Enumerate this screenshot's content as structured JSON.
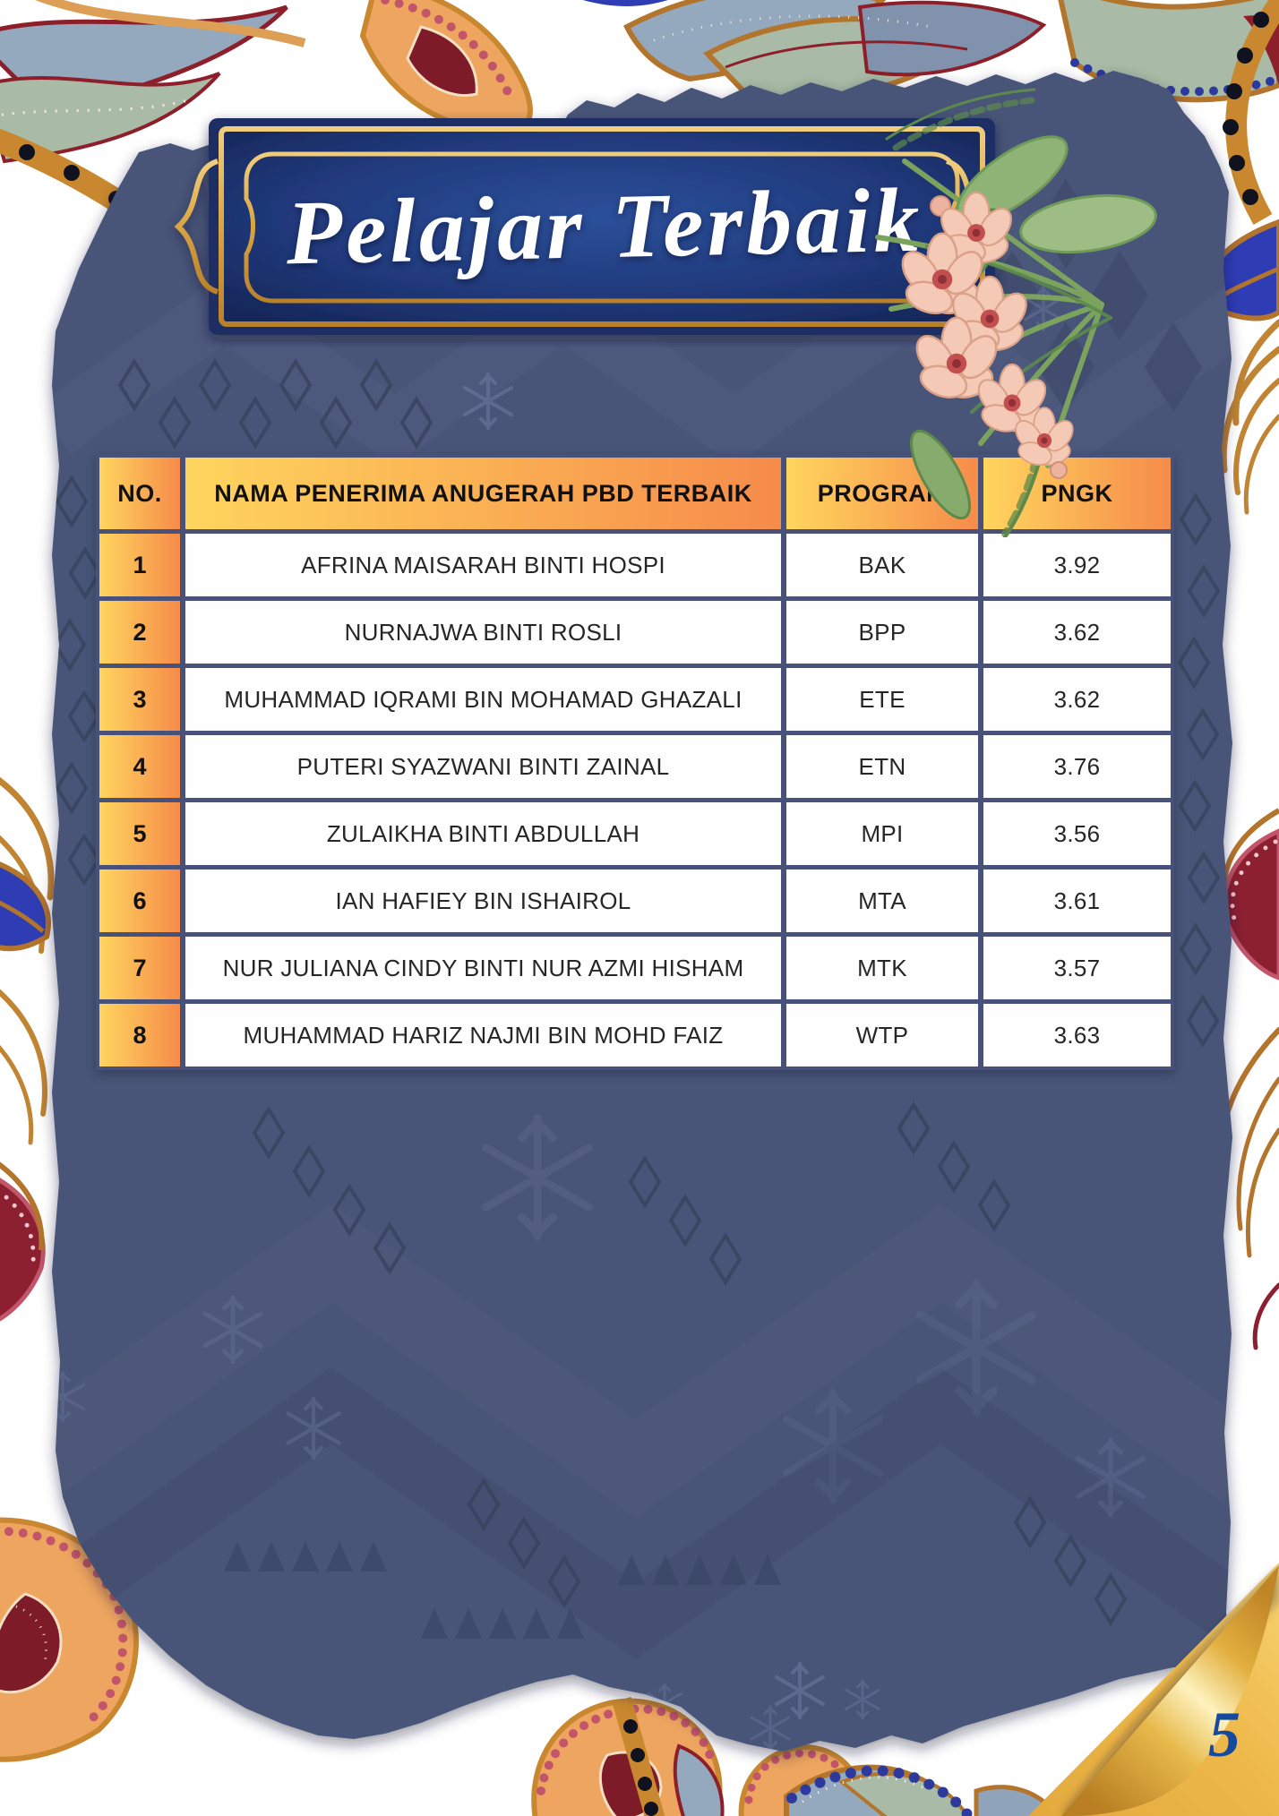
{
  "page": {
    "title": "Pelajar Terbaik",
    "page_number": "5"
  },
  "table": {
    "headers": [
      "NO.",
      "NAMA PENERIMA ANUGERAH PBD TERBAIK",
      "PROGRAM",
      "PNGK"
    ],
    "rows": [
      {
        "no": "1",
        "name": "AFRINA MAISARAH BINTI HOSPI",
        "program": "BAK",
        "pngk": "3.92"
      },
      {
        "no": "2",
        "name": "NURNAJWA BINTI ROSLI",
        "program": "BPP",
        "pngk": "3.62"
      },
      {
        "no": "3",
        "name": "MUHAMMAD IQRAMI BIN MOHAMAD GHAZALI",
        "program": "ETE",
        "pngk": "3.62"
      },
      {
        "no": "4",
        "name": "PUTERI SYAZWANI BINTI ZAINAL",
        "program": "ETN",
        "pngk": "3.76"
      },
      {
        "no": "5",
        "name": "ZULAIKHA BINTI ABDULLAH",
        "program": "MPI",
        "pngk": "3.56"
      },
      {
        "no": "6",
        "name": "IAN HAFIEY BIN ISHAIROL",
        "program": "MTA",
        "pngk": "3.61"
      },
      {
        "no": "7",
        "name": "NUR JULIANA CINDY BINTI NUR AZMI HISHAM",
        "program": "MTK",
        "pngk": "3.57"
      },
      {
        "no": "8",
        "name": "MUHAMMAD HARIZ NAJMI BIN MOHD FAIZ",
        "program": "WTP",
        "pngk": "3.63"
      }
    ]
  },
  "colors": {
    "panel_navy": "#4a5578",
    "table_frame_navy": "#47517a",
    "header_gradient_start": "#ffd55e",
    "header_gradient_end": "#f68b4a",
    "banner_navy": "#1d3a75",
    "gold": "#d9a441",
    "page_number_blue": "#164a9e",
    "batik_orange": "#eda55f",
    "batik_maroon": "#8c1f2a",
    "batik_slate": "#94a8be",
    "batik_sage": "#a9bba6",
    "batik_cobalt": "#2f3db5"
  }
}
